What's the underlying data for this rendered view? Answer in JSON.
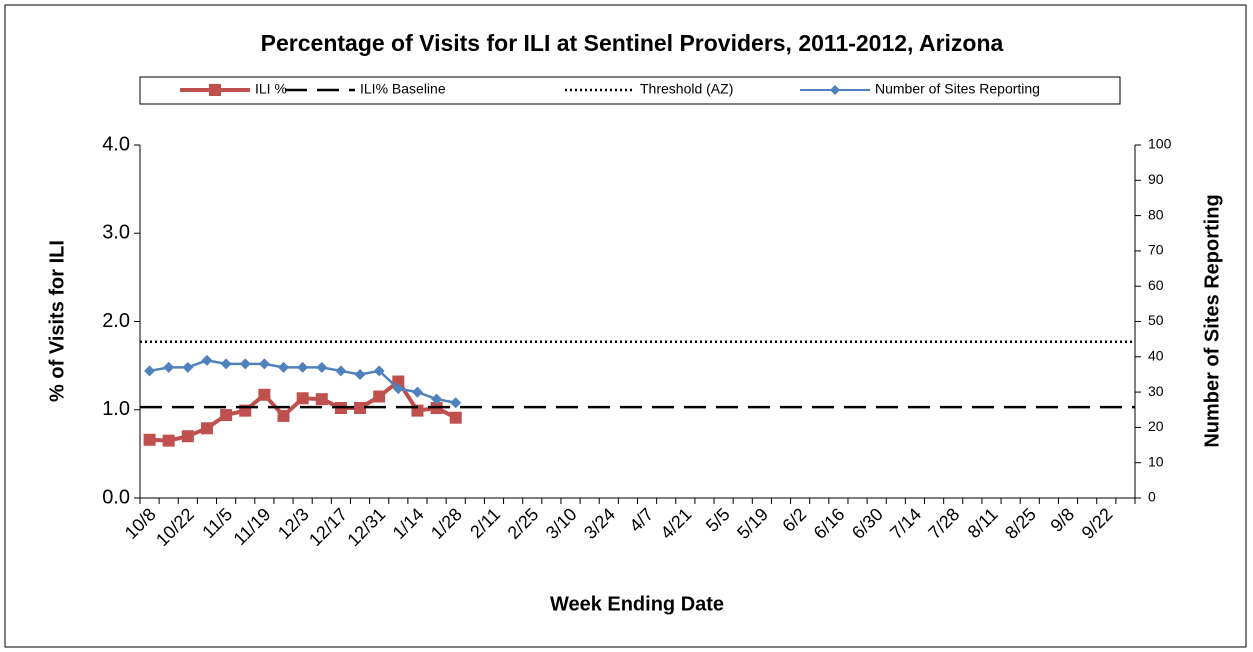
{
  "chart_data": {
    "type": "line",
    "title": "Percentage of Visits for ILI at Sentinel Providers, 2011-2012, Arizona",
    "x_label": "Week Ending Date",
    "y_label": "% of Visits for ILI",
    "y2_label": "Number of Sites Reporting",
    "categories": [
      "10/8",
      null,
      "10/22",
      null,
      "11/5",
      null,
      "11/19",
      null,
      "12/3",
      null,
      "12/17",
      null,
      "12/31",
      null,
      "1/14",
      null,
      "1/28",
      null,
      "2/11",
      null,
      "2/25",
      null,
      "3/10",
      null,
      "3/24",
      null,
      "4/7",
      null,
      "4/21",
      null,
      "5/5",
      null,
      "5/19",
      null,
      "6/2",
      null,
      "6/16",
      null,
      "6/30",
      null,
      "7/14",
      null,
      "7/28",
      null,
      "8/11",
      null,
      "8/25",
      null,
      "9/8",
      null,
      "9/22",
      null
    ],
    "series": [
      {
        "name": "ILI %",
        "color": "#c0504d",
        "marker": "square",
        "values": [
          0.66,
          0.65,
          0.7,
          0.79,
          0.94,
          0.99,
          1.17,
          0.93,
          1.13,
          1.12,
          1.02,
          1.02,
          1.15,
          1.32,
          0.99,
          1.02,
          0.91,
          null,
          null,
          null,
          null,
          null,
          null,
          null,
          null,
          null,
          null,
          null,
          null,
          null,
          null,
          null,
          null,
          null,
          null,
          null,
          null,
          null,
          null,
          null,
          null,
          null,
          null,
          null,
          null,
          null,
          null,
          null,
          null,
          null,
          null,
          null
        ]
      },
      {
        "name": "ILI% Baseline",
        "color": "#000000",
        "dash": "22,10",
        "value": 1.03
      },
      {
        "name": "Threshold (AZ)",
        "color": "#000000",
        "dash": "2,3",
        "value": 1.77
      },
      {
        "name": "Number of Sites Reporting",
        "color": "#4f81bd",
        "marker": "diamond",
        "axis": "y2",
        "values": [
          36,
          37,
          37,
          39,
          38,
          38,
          38,
          37,
          37,
          37,
          36,
          35,
          36,
          31,
          30,
          28,
          27,
          null,
          null,
          null,
          null,
          null,
          null,
          null,
          null,
          null,
          null,
          null,
          null,
          null,
          null,
          null,
          null,
          null,
          null,
          null,
          null,
          null,
          null,
          null,
          null,
          null,
          null,
          null,
          null,
          null,
          null,
          null,
          null,
          null,
          null,
          null
        ]
      }
    ],
    "ylim": [
      0,
      4
    ],
    "yticks": [
      {
        "value": 0,
        "label": "0.0"
      },
      {
        "value": 1,
        "label": "1.0"
      },
      {
        "value": 2,
        "label": "2.0"
      },
      {
        "value": 3,
        "label": "3.0"
      },
      {
        "value": 4,
        "label": "4.0"
      }
    ],
    "y2lim": [
      0,
      100
    ],
    "y2ticks": [
      0,
      10,
      20,
      30,
      40,
      50,
      60,
      70,
      80,
      90,
      100
    ],
    "legend": "top"
  }
}
